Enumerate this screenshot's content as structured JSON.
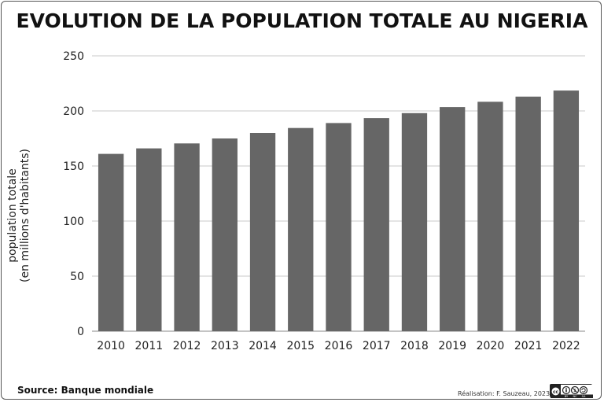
{
  "title": "EVOLUTION DE LA POPULATION TOTALE AU NIGERIA",
  "source": "Source: Banque mondiale",
  "credit": "Réalisation: F. Sauzeau, 2023",
  "license_icon": "creative-commons-by-nc-sa-icon",
  "colors": {
    "bar": "#666666",
    "grid": "#c8c8c8",
    "axis": "#888888",
    "text": "#222222"
  },
  "chart_data": {
    "type": "bar",
    "categories": [
      "2010",
      "2011",
      "2012",
      "2013",
      "2014",
      "2015",
      "2016",
      "2017",
      "2018",
      "2019",
      "2020",
      "2021",
      "2022"
    ],
    "series": [
      {
        "values": [
          161,
          166,
          170.5,
          175,
          180,
          184.5,
          189,
          193.5,
          198,
          203.5,
          208.3,
          213,
          218.5
        ]
      }
    ],
    "ylabel_line1": "population totale",
    "ylabel_line2": "(en millions d'habitants)",
    "ylim": [
      0,
      250
    ],
    "yticks": [
      0,
      50,
      100,
      150,
      200,
      250
    ],
    "grid": true
  }
}
